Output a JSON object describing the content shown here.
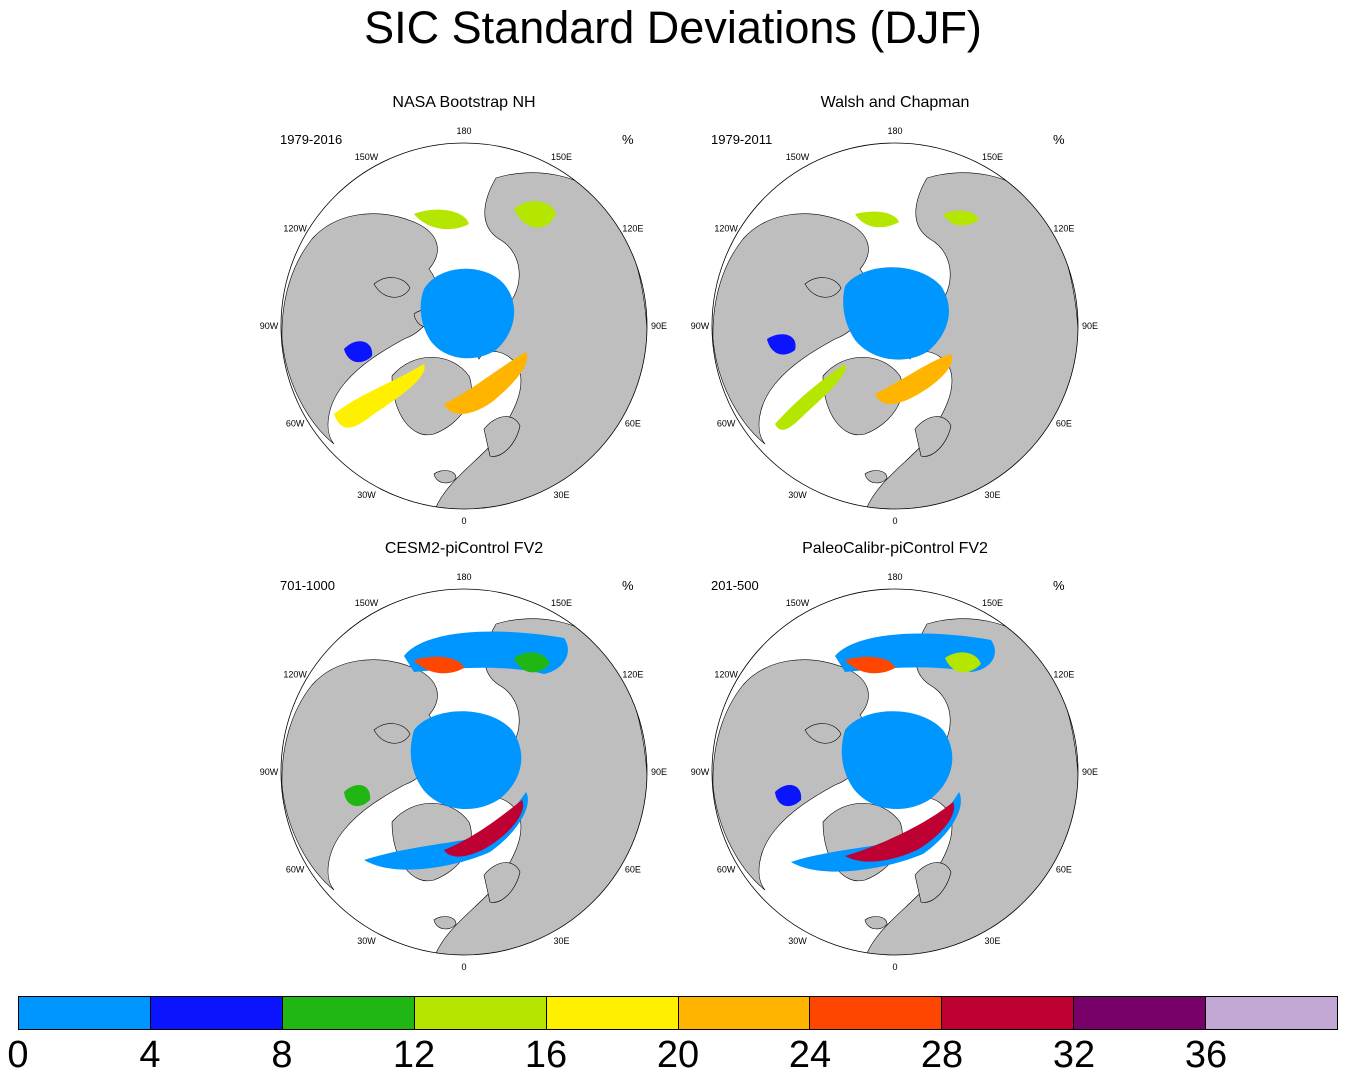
{
  "title": "SIC Standard Deviations (DJF)",
  "unit": "%",
  "colors": {
    "land": "#bebebe",
    "ocean": "#ffffff",
    "bins": [
      "#0096ff",
      "#0a14ff",
      "#20b614",
      "#b4e600",
      "#fff000",
      "#ffb400",
      "#ff4600",
      "#be0032",
      "#780069",
      "#c3a8d6"
    ]
  },
  "colorbar": {
    "labels": [
      "0",
      "4",
      "8",
      "12",
      "16",
      "20",
      "24",
      "28",
      "32",
      "36"
    ]
  },
  "longitude_labels": [
    "180",
    "150E",
    "120E",
    "90E",
    "60E",
    "30E",
    "0",
    "30W",
    "60W",
    "90W",
    "120W",
    "150W"
  ],
  "panels": [
    {
      "title": "NASA Bootstrap NH",
      "period": "1979-2016"
    },
    {
      "title": "Walsh and Chapman",
      "period": "1979-2011"
    },
    {
      "title": "CESM2-piControl FV2",
      "period": "701-1000"
    },
    {
      "title": "PaleoCalibr-piControl FV2",
      "period": "201-500"
    }
  ]
}
